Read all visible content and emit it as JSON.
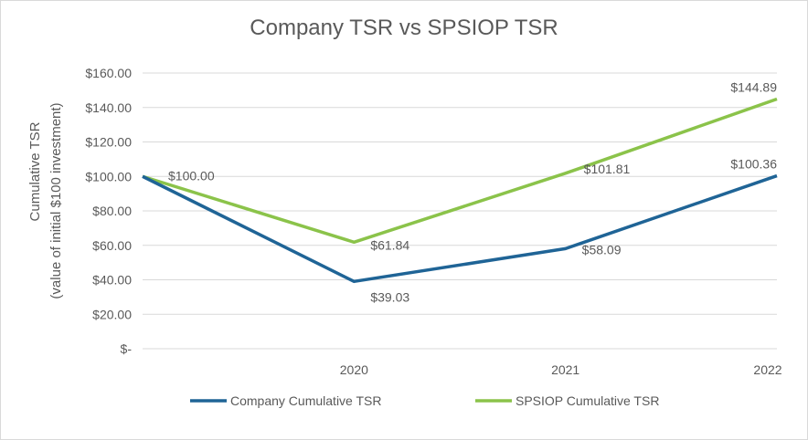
{
  "chart_data": {
    "type": "line",
    "title": "Company TSR vs SPSIOP TSR",
    "ylabel": "Cumulative TSR",
    "ylabel_sub": "(value of initial $100 investment)",
    "xlabel": "",
    "x": [
      "",
      "2020",
      "2021",
      "2022"
    ],
    "ylim": [
      0,
      160
    ],
    "yticks": [
      0,
      20,
      40,
      60,
      80,
      100,
      120,
      140,
      160
    ],
    "ytick_labels": [
      "$-",
      "$20.00",
      "$40.00",
      "$60.00",
      "$80.00",
      "$100.00",
      "$120.00",
      "$140.00",
      "$160.00"
    ],
    "grid": true,
    "legend_position": "bottom",
    "series": [
      {
        "name": "Company Cumulative TSR",
        "color": "#1f6496",
        "values": [
          100.0,
          39.03,
          58.09,
          100.36
        ],
        "labels": [
          "",
          "$39.03",
          "$58.09",
          "$100.36"
        ]
      },
      {
        "name": "SPSIOP Cumulative TSR",
        "color": "#8bc34a",
        "values": [
          100.0,
          61.84,
          101.81,
          144.89
        ],
        "labels": [
          "$100.00",
          "$61.84",
          "$101.81",
          "$144.89"
        ]
      }
    ]
  }
}
